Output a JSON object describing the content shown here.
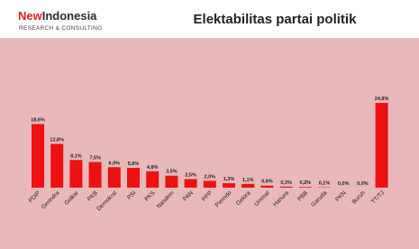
{
  "logo": {
    "part1": "New",
    "part2": "Indonesia",
    "tagline": "RESEARCH & CONSULTING"
  },
  "chart_data": {
    "type": "bar",
    "title": "Elektabilitas partai politik",
    "categories": [
      "PDIP",
      "Gerindra",
      "Golkar",
      "PKB",
      "Demokrat",
      "PSI",
      "PKS",
      "Nasdem",
      "PAN",
      "PPP",
      "Perindo",
      "Gelora",
      "Ummat",
      "Hanura",
      "PBB",
      "Garuda",
      "PKN",
      "Buruh",
      "TT/TJ"
    ],
    "values": [
      18.6,
      12.8,
      8.1,
      7.5,
      6.0,
      5.8,
      4.8,
      3.5,
      2.5,
      2.0,
      1.3,
      1.1,
      0.6,
      0.3,
      0.2,
      0.1,
      0.0,
      0.0,
      24.8
    ],
    "value_labels": [
      "18,6%",
      "12,8%",
      "8,1%",
      "7,5%",
      "6,0%",
      "5,8%",
      "4,8%",
      "3,5%",
      "2,5%",
      "2,0%",
      "1,3%",
      "1,1%",
      "0,6%",
      "0,3%",
      "0,2%",
      "0,1%",
      "0,0%",
      "0,0%",
      "24,8%"
    ],
    "color": "#ee1111"
  }
}
